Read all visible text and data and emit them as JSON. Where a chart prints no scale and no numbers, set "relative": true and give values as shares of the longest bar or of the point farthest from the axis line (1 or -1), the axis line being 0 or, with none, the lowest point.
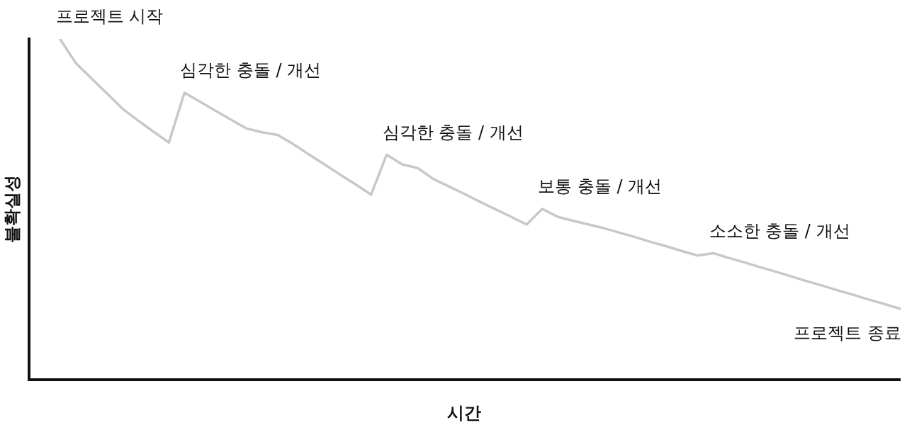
{
  "chart_data": {
    "type": "line",
    "relative": true,
    "xlabel": "시간",
    "ylabel": "불확실성",
    "legend": false,
    "marker": "none",
    "line_style": "solid",
    "categories": [
      null,
      null,
      null,
      null,
      null,
      null,
      null,
      null,
      null,
      null,
      null,
      null,
      null,
      null,
      null,
      null,
      null,
      null,
      null,
      null,
      null,
      null,
      null,
      null,
      null,
      null,
      null,
      null,
      null,
      null,
      null,
      null,
      null,
      null,
      null,
      null,
      null,
      null,
      null,
      null,
      null,
      null,
      null,
      null,
      null,
      null,
      null,
      null,
      null,
      null,
      null,
      null,
      null,
      null,
      null,
      null,
      null
    ],
    "series": [
      {
        "color": "#c8c8c8",
        "values": [
          null,
          null,
          1.0,
          0.93,
          0.885,
          0.841,
          0.796,
          0.761,
          0.728,
          0.696,
          0.842,
          0.816,
          0.789,
          0.763,
          0.737,
          0.726,
          0.718,
          0.691,
          0.661,
          0.632,
          0.602,
          0.573,
          0.543,
          0.66,
          0.632,
          0.621,
          0.589,
          0.567,
          0.545,
          0.522,
          0.5,
          0.478,
          0.455,
          0.501,
          0.478,
          0.466,
          0.455,
          0.444,
          0.431,
          0.418,
          0.404,
          0.391,
          0.377,
          0.364,
          0.371,
          0.357,
          0.344,
          0.33,
          0.317,
          0.303,
          0.289,
          0.276,
          0.262,
          0.249,
          0.235,
          0.222,
          0.208
        ]
      }
    ],
    "annotations": [
      "프로젝트 시작",
      "심각한 충돌 / 개선",
      "심각한 충돌 / 개선",
      "보통 충돌 / 개선",
      "소소한 충돌 / 개선",
      "프로젝트 종료"
    ]
  }
}
